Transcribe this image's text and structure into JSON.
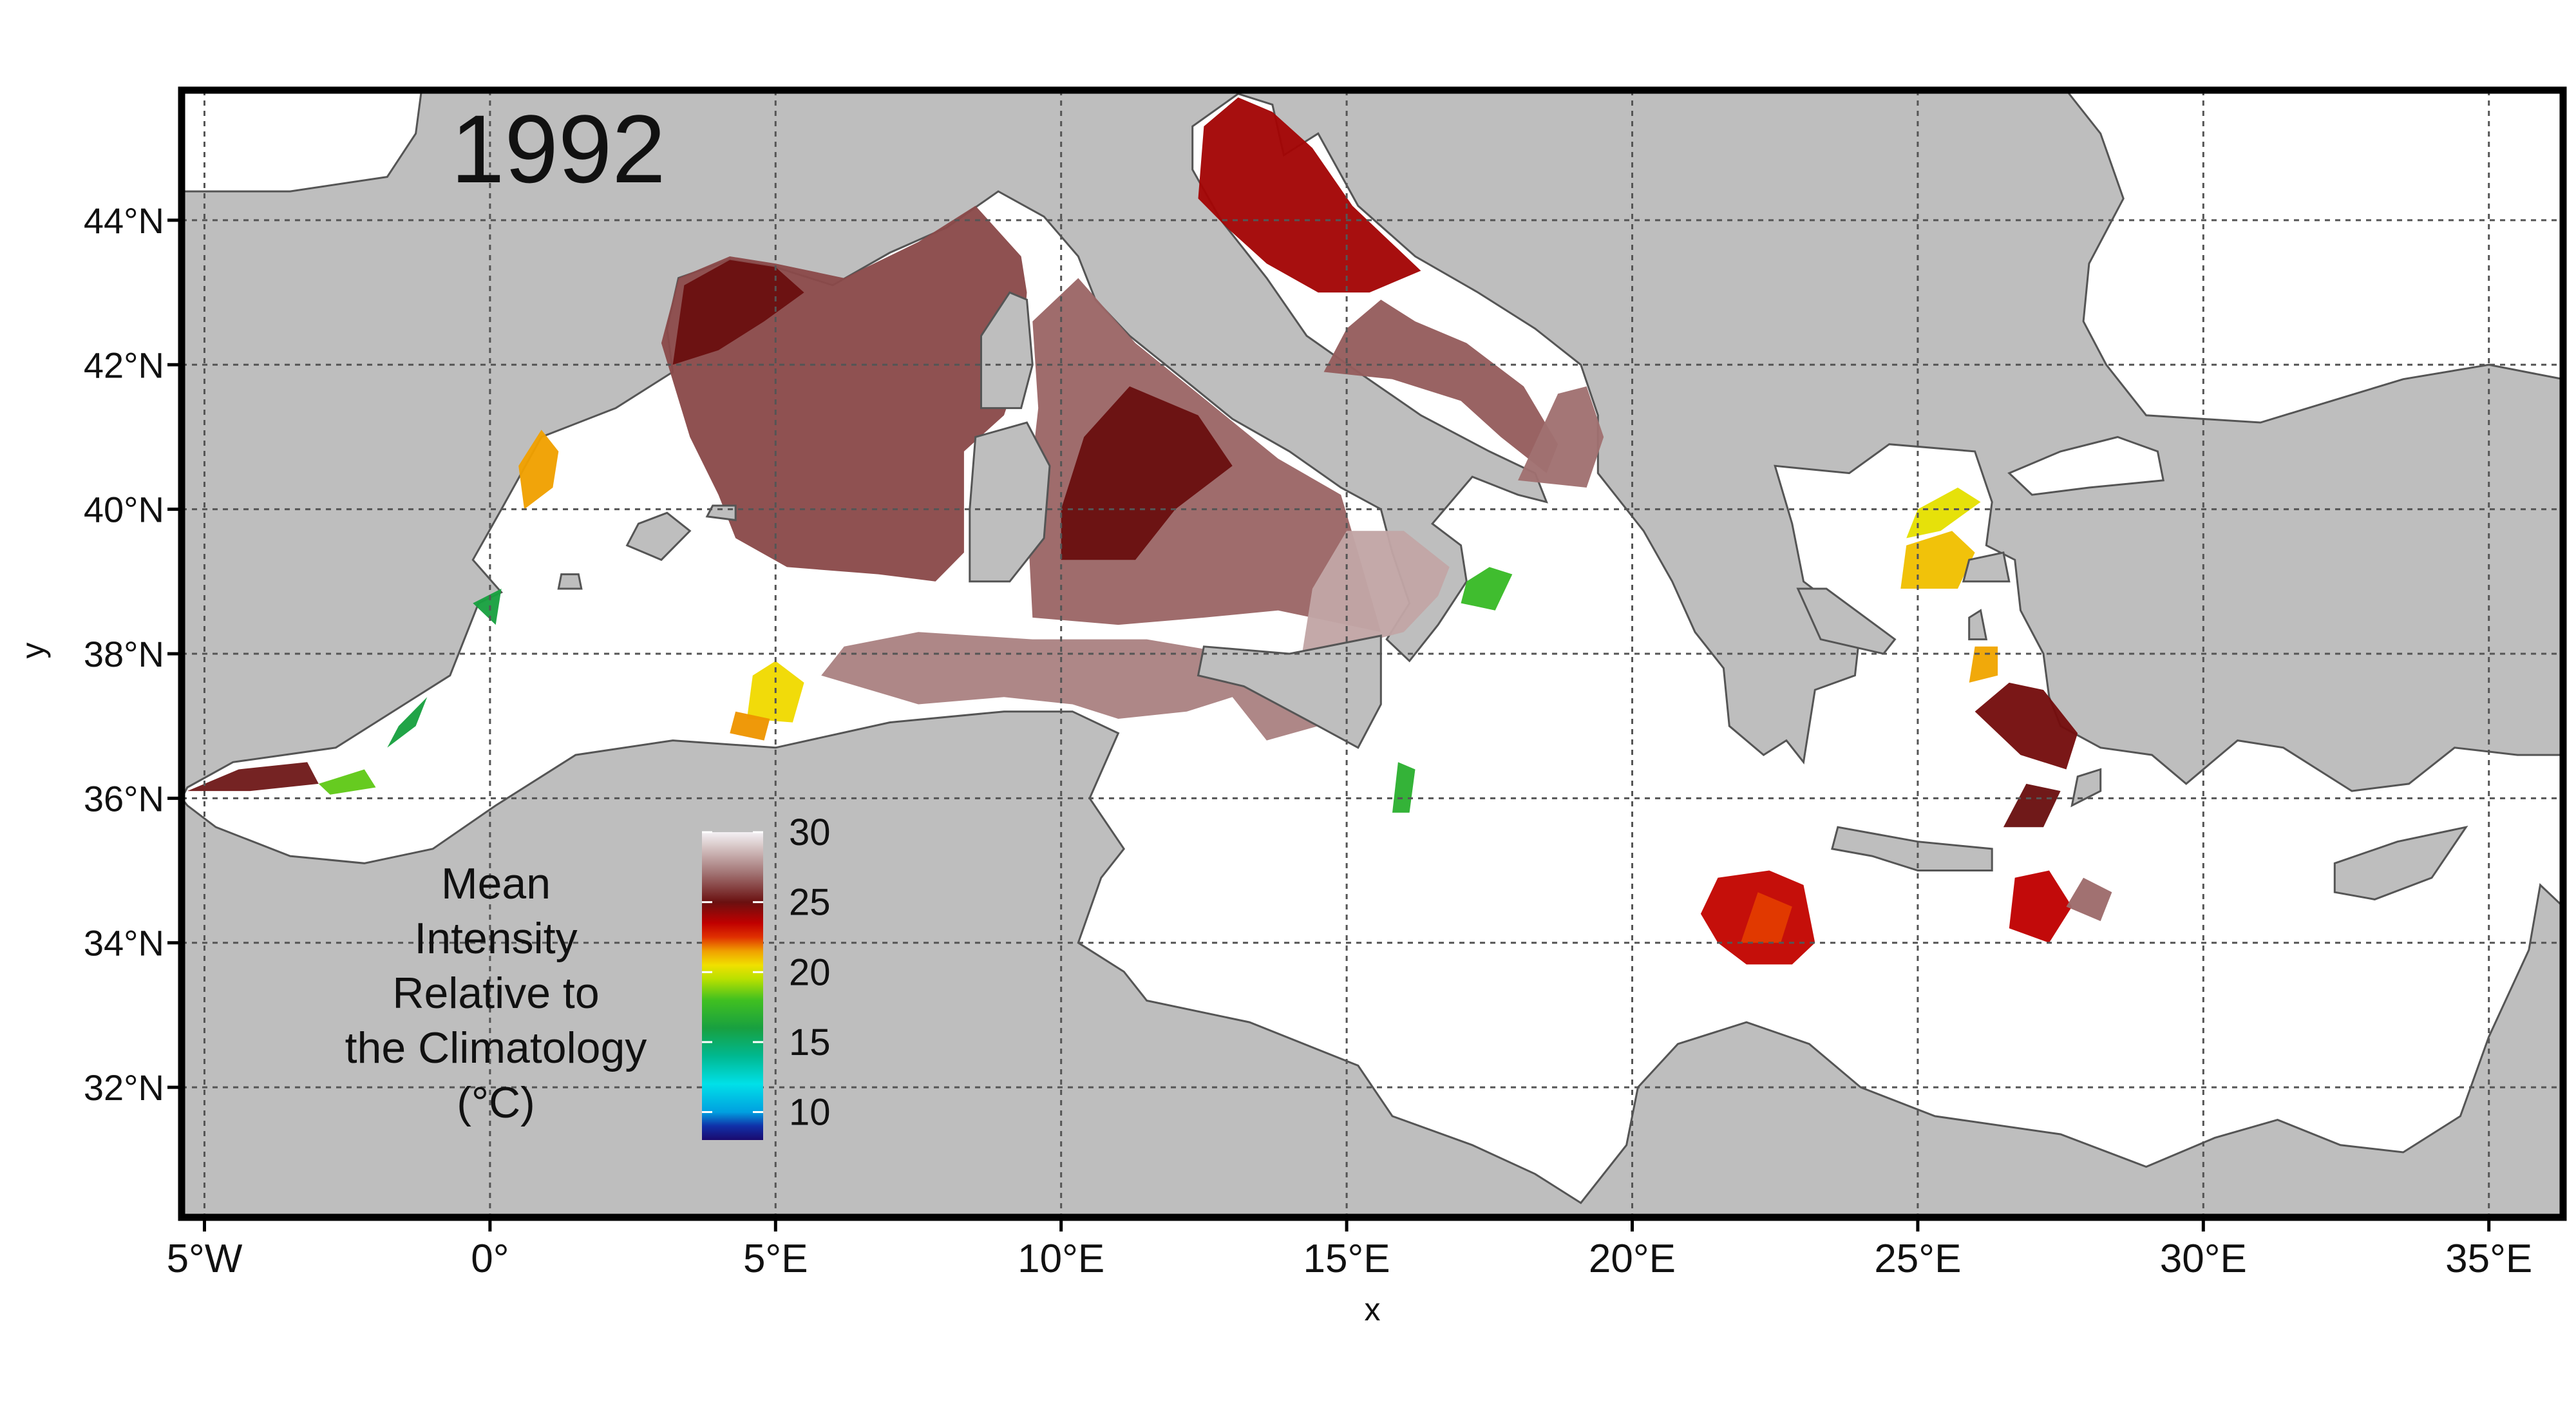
{
  "map": {
    "year_label": "1992",
    "x_axis_title": "x",
    "y_axis_title": "y",
    "x_ticks": [
      {
        "lon": -5,
        "label": "5°W"
      },
      {
        "lon": 0,
        "label": "0°"
      },
      {
        "lon": 5,
        "label": "5°E"
      },
      {
        "lon": 10,
        "label": "10°E"
      },
      {
        "lon": 15,
        "label": "15°E"
      },
      {
        "lon": 20,
        "label": "20°E"
      },
      {
        "lon": 25,
        "label": "25°E"
      },
      {
        "lon": 30,
        "label": "30°E"
      },
      {
        "lon": 35,
        "label": "35°E"
      }
    ],
    "y_ticks": [
      {
        "lat": 44,
        "label": "44°N"
      },
      {
        "lat": 42,
        "label": "42°N"
      },
      {
        "lat": 40,
        "label": "40°N"
      },
      {
        "lat": 38,
        "label": "38°N"
      },
      {
        "lat": 36,
        "label": "36°N"
      },
      {
        "lat": 34,
        "label": "34°N"
      },
      {
        "lat": 32,
        "label": "32°N"
      }
    ],
    "extent": {
      "lon_min": -5.4,
      "lon_max": 36.3,
      "lat_min": 30.2,
      "lat_max": 45.8
    },
    "colors": {
      "land": "#bebebe",
      "sea": "#ffffff",
      "coast": "#555555",
      "grid": "#555555",
      "frame": "#000000"
    }
  },
  "legend": {
    "title_lines": [
      "Mean",
      "Intensity",
      "Relative to",
      "the Climatology",
      "(°C)"
    ],
    "ticks": [
      {
        "value": 30,
        "label": "30"
      },
      {
        "value": 25,
        "label": "25"
      },
      {
        "value": 20,
        "label": "20"
      },
      {
        "value": 15,
        "label": "15"
      },
      {
        "value": 10,
        "label": "10"
      }
    ],
    "range": [
      8,
      30
    ],
    "color_stops": [
      {
        "value": 8,
        "color": "#1a0a6e"
      },
      {
        "value": 9,
        "color": "#1030a8"
      },
      {
        "value": 10,
        "color": "#00a0e0"
      },
      {
        "value": 12,
        "color": "#00e0e8"
      },
      {
        "value": 14,
        "color": "#00b890"
      },
      {
        "value": 16,
        "color": "#18a040"
      },
      {
        "value": 18,
        "color": "#40c020"
      },
      {
        "value": 19.5,
        "color": "#b8e000"
      },
      {
        "value": 20.5,
        "color": "#f0e000"
      },
      {
        "value": 21.5,
        "color": "#f0a000"
      },
      {
        "value": 22.5,
        "color": "#e03000"
      },
      {
        "value": 23.5,
        "color": "#c00000"
      },
      {
        "value": 25,
        "color": "#6a1010"
      },
      {
        "value": 27,
        "color": "#a07070"
      },
      {
        "value": 29,
        "color": "#d8c8c8"
      },
      {
        "value": 30,
        "color": "#f4f0f4"
      }
    ]
  }
}
